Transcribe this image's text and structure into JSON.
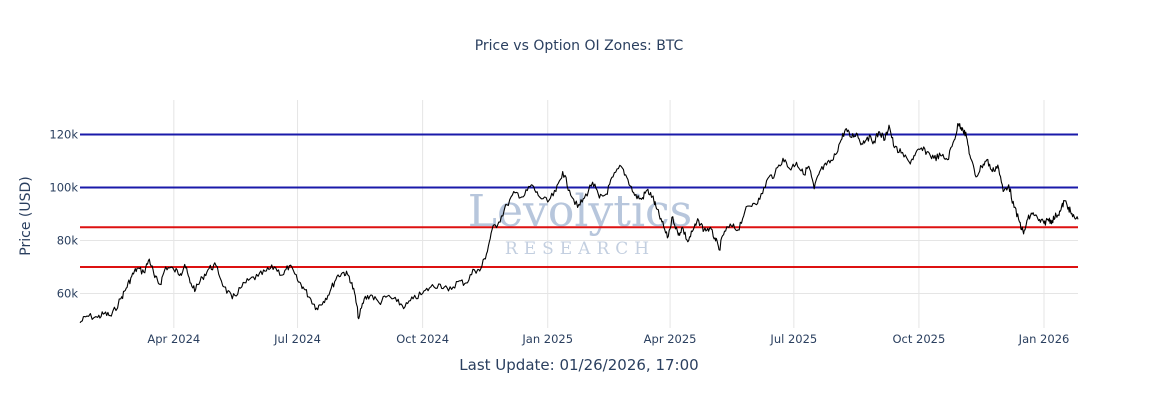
{
  "chart_data": {
    "type": "line",
    "title": "Price vs Option OI Zones: BTC",
    "ylabel": "Price (USD)",
    "xlabel": "",
    "footer": "Last Update: 01/26/2026, 17:00",
    "watermark": {
      "main": "Levolytics",
      "sub": "RESEARCH"
    },
    "x_range": [
      "2024-01-23",
      "2026-01-26"
    ],
    "ylim": [
      47000,
      133000
    ],
    "grid": true,
    "y_ticks": [
      {
        "value": 60000,
        "label": "60k"
      },
      {
        "value": 80000,
        "label": "80k"
      },
      {
        "value": 100000,
        "label": "100k"
      },
      {
        "value": 120000,
        "label": "120k"
      }
    ],
    "x_ticks": [
      {
        "date": "2024-04-01",
        "label": "Apr 2024"
      },
      {
        "date": "2024-07-01",
        "label": "Jul 2024"
      },
      {
        "date": "2024-10-01",
        "label": "Oct 2024"
      },
      {
        "date": "2025-01-01",
        "label": "Jan 2025"
      },
      {
        "date": "2025-04-01",
        "label": "Apr 2025"
      },
      {
        "date": "2025-07-01",
        "label": "Jul 2025"
      },
      {
        "date": "2025-10-01",
        "label": "Oct 2025"
      },
      {
        "date": "2026-01-01",
        "label": "Jan 2026"
      }
    ],
    "zones": [
      {
        "value": 120000,
        "color": "#1a1aaa"
      },
      {
        "value": 100000,
        "color": "#1a1aaa"
      },
      {
        "value": 85000,
        "color": "#dd1111"
      },
      {
        "value": 70000,
        "color": "#dd1111"
      }
    ],
    "series": [
      {
        "color": "#000000",
        "points": [
          [
            "2024-01-23",
            49000
          ],
          [
            "2024-01-28",
            51500
          ],
          [
            "2024-02-05",
            51000
          ],
          [
            "2024-02-10",
            52500
          ],
          [
            "2024-02-15",
            51500
          ],
          [
            "2024-02-22",
            58000
          ],
          [
            "2024-02-26",
            62000
          ],
          [
            "2024-03-01",
            66500
          ],
          [
            "2024-03-05",
            69500
          ],
          [
            "2024-03-10",
            68000
          ],
          [
            "2024-03-14",
            73000
          ],
          [
            "2024-03-18",
            66000
          ],
          [
            "2024-03-22",
            63500
          ],
          [
            "2024-03-26",
            70000
          ],
          [
            "2024-04-01",
            69000
          ],
          [
            "2024-04-06",
            67500
          ],
          [
            "2024-04-09",
            71000
          ],
          [
            "2024-04-13",
            64000
          ],
          [
            "2024-04-17",
            61500
          ],
          [
            "2024-04-22",
            66000
          ],
          [
            "2024-04-27",
            69500
          ],
          [
            "2024-05-02",
            70500
          ],
          [
            "2024-05-08",
            62500
          ],
          [
            "2024-05-14",
            58000
          ],
          [
            "2024-05-20",
            62000
          ],
          [
            "2024-05-26",
            65000
          ],
          [
            "2024-06-02",
            66500
          ],
          [
            "2024-06-08",
            68500
          ],
          [
            "2024-06-14",
            70000
          ],
          [
            "2024-06-20",
            67000
          ],
          [
            "2024-06-25",
            70500
          ],
          [
            "2024-07-01",
            65000
          ],
          [
            "2024-07-05",
            62500
          ],
          [
            "2024-07-10",
            58500
          ],
          [
            "2024-07-15",
            54500
          ],
          [
            "2024-07-20",
            57000
          ],
          [
            "2024-07-25",
            61000
          ],
          [
            "2024-07-30",
            66500
          ],
          [
            "2024-08-04",
            68000
          ],
          [
            "2024-08-08",
            66500
          ],
          [
            "2024-08-12",
            60000
          ],
          [
            "2024-08-15",
            50500
          ],
          [
            "2024-08-19",
            58000
          ],
          [
            "2024-08-24",
            59500
          ],
          [
            "2024-08-30",
            56500
          ],
          [
            "2024-09-05",
            59000
          ],
          [
            "2024-09-12",
            57000
          ],
          [
            "2024-09-18",
            55000
          ],
          [
            "2024-09-24",
            58000
          ],
          [
            "2024-10-01",
            60000
          ],
          [
            "2024-10-07",
            62500
          ],
          [
            "2024-10-14",
            63500
          ],
          [
            "2024-10-20",
            61000
          ],
          [
            "2024-10-27",
            64500
          ],
          [
            "2024-11-02",
            64000
          ],
          [
            "2024-11-08",
            69000
          ],
          [
            "2024-11-12",
            68500
          ],
          [
            "2024-11-17",
            75000
          ],
          [
            "2024-11-21",
            84000
          ],
          [
            "2024-11-26",
            87000
          ],
          [
            "2024-12-02",
            93500
          ],
          [
            "2024-12-08",
            98000
          ],
          [
            "2024-12-14",
            96500
          ],
          [
            "2024-12-20",
            101000
          ],
          [
            "2024-12-25",
            97000
          ],
          [
            "2025-01-01",
            94500
          ],
          [
            "2025-01-07",
            98500
          ],
          [
            "2025-01-12",
            106000
          ],
          [
            "2025-01-17",
            99000
          ],
          [
            "2025-01-23",
            92500
          ],
          [
            "2025-01-28",
            96000
          ],
          [
            "2025-02-03",
            102000
          ],
          [
            "2025-02-08",
            96000
          ],
          [
            "2025-02-13",
            97500
          ],
          [
            "2025-02-18",
            104000
          ],
          [
            "2025-02-24",
            108000
          ],
          [
            "2025-03-01",
            103000
          ],
          [
            "2025-03-06",
            97000
          ],
          [
            "2025-03-11",
            95500
          ],
          [
            "2025-03-15",
            99000
          ],
          [
            "2025-03-19",
            96500
          ],
          [
            "2025-03-22",
            92000
          ],
          [
            "2025-03-26",
            87000
          ],
          [
            "2025-03-30",
            81000
          ],
          [
            "2025-04-03",
            89000
          ],
          [
            "2025-04-07",
            82000
          ],
          [
            "2025-04-10",
            85000
          ],
          [
            "2025-04-14",
            79500
          ],
          [
            "2025-04-18",
            84000
          ],
          [
            "2025-04-22",
            87500
          ],
          [
            "2025-04-26",
            84000
          ],
          [
            "2025-04-30",
            84500
          ],
          [
            "2025-05-04",
            81000
          ],
          [
            "2025-05-07",
            76500
          ],
          [
            "2025-05-11",
            83500
          ],
          [
            "2025-05-16",
            85500
          ],
          [
            "2025-05-21",
            84000
          ],
          [
            "2025-05-26",
            91000
          ],
          [
            "2025-06-01",
            94000
          ],
          [
            "2025-06-06",
            95500
          ],
          [
            "2025-06-12",
            103500
          ],
          [
            "2025-06-17",
            105000
          ],
          [
            "2025-06-23",
            111000
          ],
          [
            "2025-06-28",
            107000
          ],
          [
            "2025-07-03",
            109500
          ],
          [
            "2025-07-08",
            105000
          ],
          [
            "2025-07-12",
            108000
          ],
          [
            "2025-07-16",
            99500
          ],
          [
            "2025-07-20",
            106000
          ],
          [
            "2025-07-25",
            108500
          ],
          [
            "2025-07-30",
            110500
          ],
          [
            "2025-08-04",
            117000
          ],
          [
            "2025-08-08",
            122000
          ],
          [
            "2025-08-12",
            119000
          ],
          [
            "2025-08-16",
            120500
          ],
          [
            "2025-08-20",
            116500
          ],
          [
            "2025-08-24",
            119000
          ],
          [
            "2025-08-29",
            117500
          ],
          [
            "2025-09-02",
            121000
          ],
          [
            "2025-09-06",
            118000
          ],
          [
            "2025-09-09",
            123500
          ],
          [
            "2025-09-13",
            115000
          ],
          [
            "2025-09-18",
            113000
          ],
          [
            "2025-09-24",
            109500
          ],
          [
            "2025-09-28",
            112000
          ],
          [
            "2025-10-02",
            114500
          ],
          [
            "2025-10-07",
            113500
          ],
          [
            "2025-10-12",
            111000
          ],
          [
            "2025-10-17",
            112000
          ],
          [
            "2025-10-22",
            110500
          ],
          [
            "2025-10-27",
            118000
          ],
          [
            "2025-10-30",
            124000
          ],
          [
            "2025-11-02",
            122500
          ],
          [
            "2025-11-05",
            119000
          ],
          [
            "2025-11-08",
            111000
          ],
          [
            "2025-11-12",
            104000
          ],
          [
            "2025-11-16",
            108000
          ],
          [
            "2025-11-20",
            110500
          ],
          [
            "2025-11-24",
            106000
          ],
          [
            "2025-11-28",
            108500
          ],
          [
            "2025-12-02",
            98500
          ],
          [
            "2025-12-06",
            101000
          ],
          [
            "2025-12-10",
            92500
          ],
          [
            "2025-12-14",
            87000
          ],
          [
            "2025-12-17",
            82500
          ],
          [
            "2025-12-20",
            88000
          ],
          [
            "2025-12-24",
            90500
          ],
          [
            "2025-12-28",
            87500
          ],
          [
            "2026-01-01",
            86500
          ],
          [
            "2026-01-04",
            88000
          ],
          [
            "2026-01-07",
            87500
          ],
          [
            "2026-01-10",
            89500
          ],
          [
            "2026-01-13",
            91000
          ],
          [
            "2026-01-16",
            95000
          ],
          [
            "2026-01-19",
            92500
          ],
          [
            "2026-01-22",
            89000
          ],
          [
            "2026-01-26",
            88000
          ]
        ]
      }
    ]
  }
}
